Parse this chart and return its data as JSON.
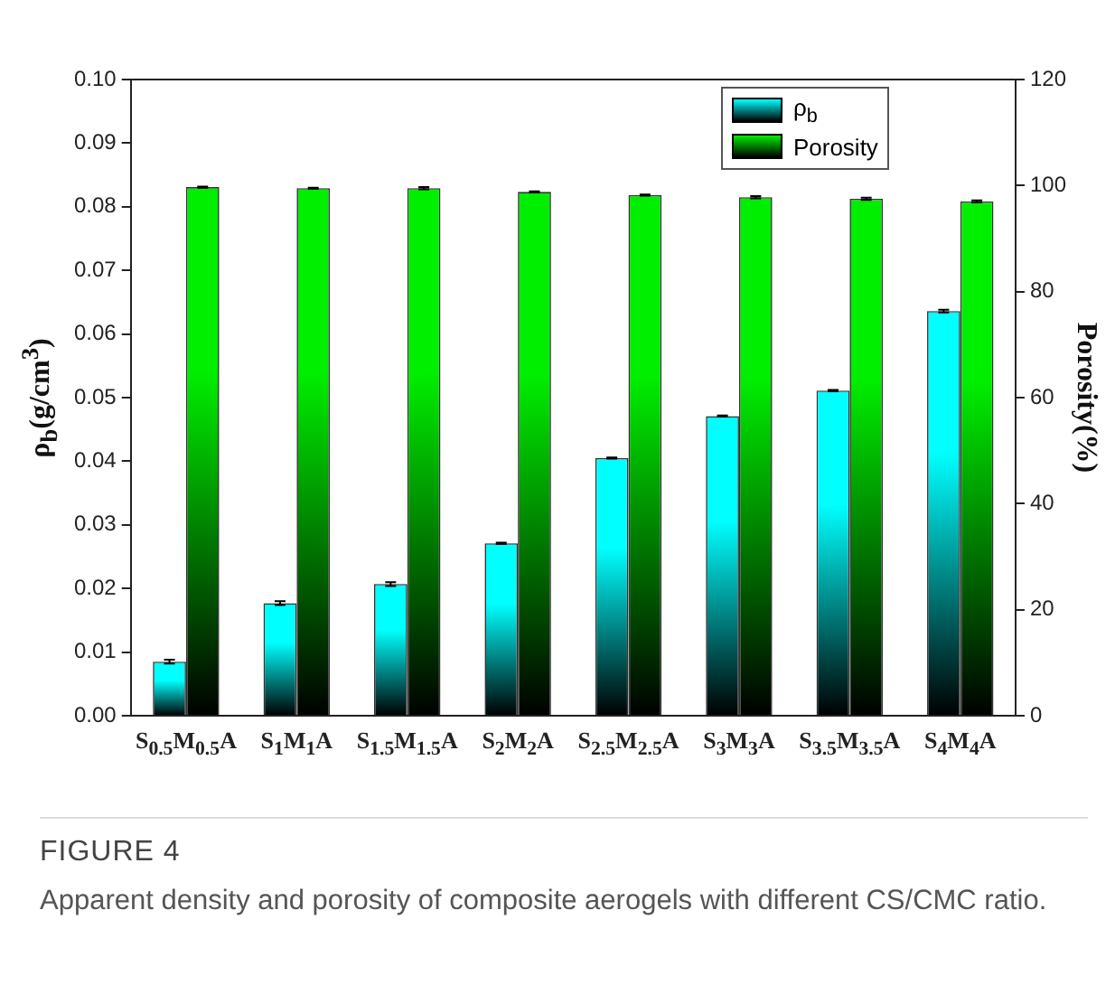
{
  "chart_data": {
    "type": "bar",
    "title": "FIGURE 4",
    "annotations": [
      "Apparent density and porosity of composite aerogels with different CS/CMC ratio."
    ],
    "categories": [
      "S$_{0.5}$M$_{0.5}$A",
      "S$_{1}$M$_{1}$A",
      "S$_{1.5}$M$_{1.5}$A",
      "S$_{2}$M$_{2}$A",
      "S$_{2.5}$M$_{2.5}$A",
      "S$_{3}$M$_{3}$A",
      "S$_{3.5}$M$_{3.5}$A",
      "S$_{4}$M$_{4}$A"
    ],
    "series": [
      {
        "name": "ρ$_{b}$",
        "color": "#00ffff",
        "values": [
          0.0085,
          0.0177,
          0.0207,
          0.0271,
          0.0405,
          0.0471,
          0.0511,
          0.0636
        ],
        "errors": [
          0.0003,
          0.0003,
          0.0003,
          0.0001,
          0.0001,
          0.0001,
          0.0001,
          0.0002
        ]
      },
      {
        "name": "Porosity",
        "color": "#00ee00",
        "axis": "y2",
        "values": [
          99.7,
          99.5,
          99.5,
          98.8,
          98.2,
          97.8,
          97.5,
          97.0
        ],
        "errors": [
          0.1,
          0.1,
          0.2,
          0.1,
          0.1,
          0.2,
          0.2,
          0.2
        ]
      }
    ],
    "ylabel": "ρ$_{b}$(g/cm$^{3}$)",
    "y2label": "Porosity(%)",
    "ylim": [
      0,
      0.1
    ],
    "yticks": [
      {
        "value": 0,
        "label": "0.00"
      },
      {
        "value": 0.01,
        "label": "0.01"
      },
      {
        "value": 0.02,
        "label": "0.02"
      },
      {
        "value": 0.03,
        "label": "0.03"
      },
      {
        "value": 0.04,
        "label": "0.04"
      },
      {
        "value": 0.05,
        "label": "0.05"
      },
      {
        "value": 0.06,
        "label": "0.06"
      },
      {
        "value": 0.07,
        "label": "0.07"
      },
      {
        "value": 0.08,
        "label": "0.08"
      },
      {
        "value": 0.09,
        "label": "0.09"
      },
      {
        "value": 0.1,
        "label": "0.10"
      }
    ],
    "y2lim": [
      0,
      120
    ],
    "y2ticks": [
      0,
      20,
      40,
      60,
      80,
      100,
      120
    ],
    "legend": "top right"
  }
}
